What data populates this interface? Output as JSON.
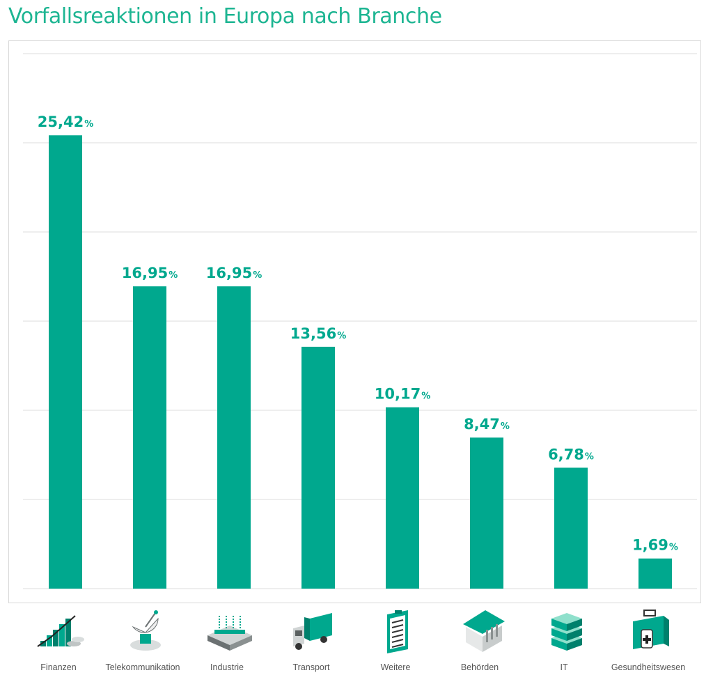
{
  "colors": {
    "accent": "#00a88e",
    "title": "#1db592",
    "grid": "#dcdcdc",
    "label": "#555555"
  },
  "chart_data": {
    "type": "bar",
    "title": "Vorfallsreaktionen in Europa nach Branche",
    "categories": [
      "Finanzen",
      "Telekommunikation",
      "Industrie",
      "Transport",
      "Weitere",
      "Behörden",
      "IT",
      "Gesundheitswesen"
    ],
    "values": [
      25.42,
      16.95,
      16.95,
      13.56,
      10.17,
      8.47,
      6.78,
      1.69
    ],
    "value_labels": [
      "25,42",
      "16,95",
      "16,95",
      "13,56",
      "10,17",
      "8,47",
      "6,78",
      "1,69"
    ],
    "value_suffix": "%",
    "category_icons": [
      "finance-icon",
      "satellite-dish-icon",
      "factory-icon",
      "truck-icon",
      "clipboard-icon",
      "government-building-icon",
      "server-icon",
      "first-aid-kit-icon"
    ],
    "ylim": [
      0,
      30
    ],
    "grid": true,
    "xlabel": "",
    "ylabel": ""
  }
}
